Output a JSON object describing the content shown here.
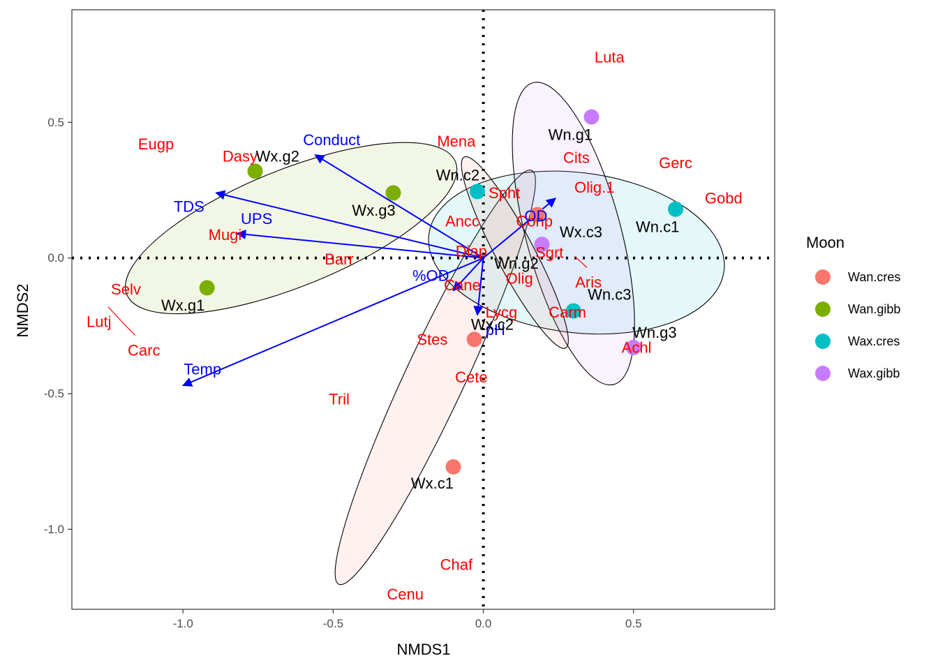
{
  "chart_data": {
    "type": "scatter",
    "xlabel": "NMDS1",
    "ylabel": "NMDS2",
    "xlim": [
      -1.37,
      0.97
    ],
    "ylim": [
      -1.295,
      0.915
    ],
    "x_ticks": [
      -1.0,
      -0.5,
      0.0,
      0.5
    ],
    "x_tick_labels": [
      "-1.0",
      "-0.5",
      "0.0",
      "0.5"
    ],
    "y_ticks": [
      -1.0,
      -0.5,
      0.0,
      0.5
    ],
    "y_tick_labels": [
      "-1.0",
      "-0.5",
      "0.0",
      "0.5"
    ],
    "grid": false,
    "reference_lines": {
      "x": 0,
      "y": 0,
      "style": "dotted"
    },
    "legend": {
      "title": "Moon",
      "position": "right",
      "entries": [
        {
          "name": "Wan.cres",
          "color": "#F8766D"
        },
        {
          "name": "Wan.gibb",
          "color": "#7CAE00"
        },
        {
          "name": "Wax.cres",
          "color": "#00BFC4"
        },
        {
          "name": "Wax.gibb",
          "color": "#C77CFF"
        }
      ]
    },
    "species_color": "#FF0000",
    "env_color": "#0000FF",
    "site_label_color": "#000000",
    "sites": [
      {
        "label": "Wx.c1",
        "group": "Wan.cres",
        "x": -0.1,
        "y": -0.77,
        "lx": -0.17,
        "ly": -0.83
      },
      {
        "label": "Wx.c2",
        "group": "Wan.cres",
        "x": -0.03,
        "y": -0.3,
        "lx": 0.03,
        "ly": -0.245
      },
      {
        "label": "Wx.c3",
        "group": "Wan.cres",
        "x": 0.18,
        "y": 0.16,
        "lx": 0.325,
        "ly": 0.095
      },
      {
        "label": "Wx.g1",
        "group": "Wan.gibb",
        "x": -0.92,
        "y": -0.11,
        "lx": -1.0,
        "ly": -0.175
      },
      {
        "label": "Wx.g2",
        "group": "Wan.gibb",
        "x": -0.76,
        "y": 0.32,
        "lx": -0.685,
        "ly": 0.375
      },
      {
        "label": "Wx.g3",
        "group": "Wan.gibb",
        "x": -0.3,
        "y": 0.24,
        "lx": -0.365,
        "ly": 0.175
      },
      {
        "label": "Wn.c1",
        "group": "Wax.cres",
        "x": 0.64,
        "y": 0.18,
        "lx": 0.58,
        "ly": 0.115
      },
      {
        "label": "Wn.c2",
        "group": "Wax.cres",
        "x": -0.02,
        "y": 0.245,
        "lx": -0.085,
        "ly": 0.305
      },
      {
        "label": "Wn.c3",
        "group": "Wax.cres",
        "x": 0.3,
        "y": -0.195,
        "lx": 0.42,
        "ly": -0.135
      },
      {
        "label": "Wn.g1",
        "group": "Wax.gibb",
        "x": 0.36,
        "y": 0.52,
        "lx": 0.29,
        "ly": 0.455
      },
      {
        "label": "Wn.g2",
        "group": "Wax.gibb",
        "x": 0.195,
        "y": 0.05,
        "lx": 0.11,
        "ly": -0.02
      },
      {
        "label": "Wn.g3",
        "group": "Wax.gibb",
        "x": 0.5,
        "y": -0.33,
        "lx": 0.57,
        "ly": -0.275
      }
    ],
    "ellipses": [
      {
        "group": "Wan.cres",
        "cx": -0.16,
        "cy": -0.44,
        "rx": 0.76,
        "ry": 0.11,
        "angle_deg": -115
      },
      {
        "group": "Wan.gibb",
        "cx": -0.64,
        "cy": 0.11,
        "rx": 0.59,
        "ry": 0.215,
        "angle_deg": 22
      },
      {
        "group": "Wax.cres",
        "cx": 0.31,
        "cy": 0.02,
        "rx": 0.495,
        "ry": 0.295,
        "angle_deg": -7
      },
      {
        "group": "Wax.gibb",
        "cx": 0.3,
        "cy": 0.09,
        "rx": 0.52,
        "ry": 0.175,
        "angle_deg": 105
      },
      {
        "group": "Wan.cres",
        "cx": 0.105,
        "cy": 0.02,
        "rx": 0.36,
        "ry": 0.07,
        "angle_deg": 118
      }
    ],
    "env_vectors": [
      {
        "label": "Conduct",
        "x": -0.56,
        "y": 0.38,
        "lx": -0.505,
        "ly": 0.435
      },
      {
        "label": "TDS",
        "x": -0.89,
        "y": 0.24,
        "lx": -0.98,
        "ly": 0.19
      },
      {
        "label": "UPS",
        "x": -0.82,
        "y": 0.09,
        "lx": -0.755,
        "ly": 0.145
      },
      {
        "label": "Temp",
        "x": -1.0,
        "y": -0.47,
        "lx": -0.935,
        "ly": -0.41
      },
      {
        "label": "%OD",
        "x": -0.1,
        "y": -0.12,
        "lx": -0.175,
        "ly": -0.065
      },
      {
        "label": "OD",
        "x": 0.24,
        "y": 0.22,
        "lx": 0.175,
        "ly": 0.155
      },
      {
        "label": "pH",
        "x": -0.02,
        "y": -0.21,
        "lx": 0.04,
        "ly": -0.265
      }
    ],
    "species": [
      {
        "label": "Luta",
        "x": 0.42,
        "y": 0.74
      },
      {
        "label": "Eugp",
        "x": -1.09,
        "y": 0.42
      },
      {
        "label": "Dasy",
        "x": -0.81,
        "y": 0.375
      },
      {
        "label": "Mena",
        "x": -0.09,
        "y": 0.43
      },
      {
        "label": "Cits",
        "x": 0.31,
        "y": 0.37
      },
      {
        "label": "Gerc",
        "x": 0.64,
        "y": 0.35
      },
      {
        "label": "Spht",
        "x": 0.07,
        "y": 0.24
      },
      {
        "label": "Olig.1",
        "x": 0.37,
        "y": 0.26
      },
      {
        "label": "Gobd",
        "x": 0.8,
        "y": 0.22
      },
      {
        "label": "Ancc",
        "x": -0.07,
        "y": 0.135
      },
      {
        "label": "Conp",
        "x": 0.17,
        "y": 0.135
      },
      {
        "label": "Mugi",
        "x": -0.86,
        "y": 0.085
      },
      {
        "label": "Diap",
        "x": -0.04,
        "y": 0.025
      },
      {
        "label": "Barr",
        "x": -0.48,
        "y": -0.005
      },
      {
        "label": "Sgrt",
        "x": 0.22,
        "y": 0.02
      },
      {
        "label": "Olig",
        "x": 0.12,
        "y": -0.075
      },
      {
        "label": "Aris",
        "x": 0.35,
        "y": -0.09
      },
      {
        "label": "Selv",
        "x": -1.19,
        "y": -0.115
      },
      {
        "label": "Cane",
        "x": -0.07,
        "y": -0.1
      },
      {
        "label": "Lycg",
        "x": 0.06,
        "y": -0.2
      },
      {
        "label": "Carm",
        "x": 0.28,
        "y": -0.2
      },
      {
        "label": "Lutj",
        "x": -1.28,
        "y": -0.235
      },
      {
        "label": "Stes",
        "x": -0.17,
        "y": -0.3
      },
      {
        "label": "Achl",
        "x": 0.51,
        "y": -0.33
      },
      {
        "label": "Carc",
        "x": -1.13,
        "y": -0.34
      },
      {
        "label": "Cete",
        "x": -0.04,
        "y": -0.44
      },
      {
        "label": "Tril",
        "x": -0.48,
        "y": -0.52
      },
      {
        "label": "Chaf",
        "x": -0.09,
        "y": -1.13
      },
      {
        "label": "Cenu",
        "x": -0.26,
        "y": -1.24
      }
    ],
    "leader_lines": [
      {
        "x1": -1.25,
        "y1": -0.18,
        "x2": -1.16,
        "y2": -0.285
      },
      {
        "x1": 0.305,
        "y1": 0.005,
        "x2": 0.345,
        "y2": -0.035
      }
    ]
  }
}
